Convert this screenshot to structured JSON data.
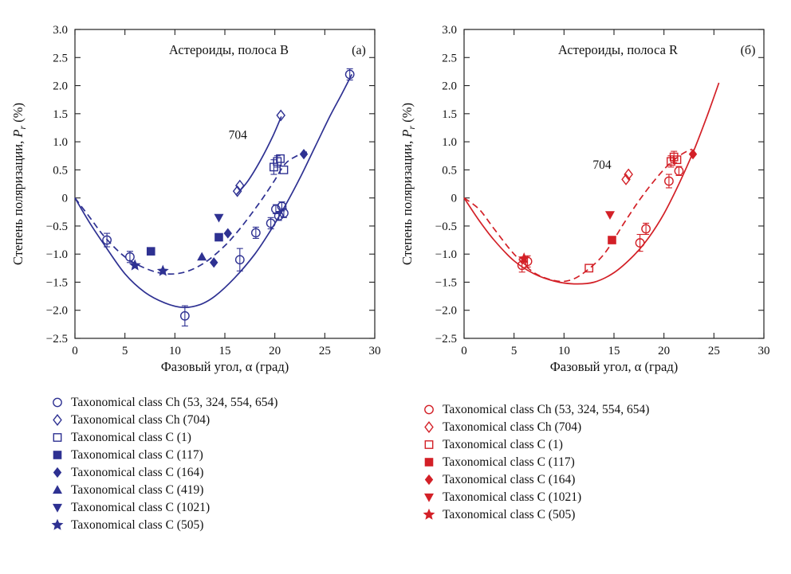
{
  "page": {
    "background": "#ffffff"
  },
  "chart_data": [
    {
      "type": "scatter",
      "band": "B",
      "panel_label": "(а)",
      "title": "Астероиды, полоса B",
      "xlabel": "Фазовый угол, α (град)",
      "ylabel_parts": {
        "prefix": "Степень поляризации, ",
        "symbol": "P",
        "sub": "r",
        "suffix": " (%)"
      },
      "color": "#2e3192",
      "xlim": [
        0,
        30
      ],
      "ylim": [
        -2.5,
        3.0
      ],
      "xticks": [
        0,
        5,
        10,
        15,
        20,
        25,
        30
      ],
      "xtick_labels": [
        "0",
        "5",
        "10",
        "15",
        "20",
        "25",
        "30"
      ],
      "yticks": [
        3.0,
        2.5,
        2.0,
        1.5,
        1.0,
        0.5,
        0,
        -0.5,
        -1.0,
        -1.5,
        -2.0,
        -2.5
      ],
      "ytick_labels": [
        "3.0",
        "2.5",
        "2.0",
        "1.5",
        "1.0",
        "0.5",
        "0",
        "−0.5",
        "−1.0",
        "−1.5",
        "−2.0",
        "−2.5"
      ],
      "annotation": {
        "text": "704",
        "x": 16.3,
        "y": 1.05
      },
      "curves": [
        {
          "style": "solid",
          "points": [
            [
              0,
              0
            ],
            [
              1.5,
              -0.45
            ],
            [
              3,
              -0.85
            ],
            [
              5,
              -1.35
            ],
            [
              7,
              -1.68
            ],
            [
              9,
              -1.87
            ],
            [
              10.8,
              -1.95
            ],
            [
              12.5,
              -1.9
            ],
            [
              14,
              -1.75
            ],
            [
              16,
              -1.42
            ],
            [
              18,
              -1.0
            ],
            [
              19.5,
              -0.6
            ],
            [
              21,
              -0.15
            ],
            [
              22.5,
              0.35
            ],
            [
              24,
              0.9
            ],
            [
              25.5,
              1.45
            ],
            [
              26.7,
              1.85
            ],
            [
              27.7,
              2.2
            ]
          ]
        },
        {
          "style": "dashed",
          "points": [
            [
              0,
              0
            ],
            [
              1.5,
              -0.35
            ],
            [
              3,
              -0.7
            ],
            [
              5,
              -1.05
            ],
            [
              7,
              -1.25
            ],
            [
              9,
              -1.35
            ],
            [
              11,
              -1.32
            ],
            [
              13,
              -1.15
            ],
            [
              15,
              -0.85
            ],
            [
              16.5,
              -0.55
            ],
            [
              18,
              -0.2
            ],
            [
              19,
              0.05
            ],
            [
              20,
              0.32
            ],
            [
              21,
              0.6
            ],
            [
              22,
              0.73
            ],
            [
              23.2,
              0.82
            ]
          ]
        },
        {
          "style": "solid",
          "points": [
            [
              16.1,
              0.05
            ],
            [
              17.3,
              0.3
            ],
            [
              18.6,
              0.68
            ],
            [
              19.8,
              1.1
            ],
            [
              20.65,
              1.45
            ]
          ]
        }
      ],
      "series": [
        {
          "name": "Taxonomical class Ch (53, 324, 554, 654)",
          "symbol": "circle-open",
          "points": [
            {
              "x": 3.2,
              "y": -0.75,
              "err": 0.12
            },
            {
              "x": 5.5,
              "y": -1.05,
              "err": 0.1
            },
            {
              "x": 11.0,
              "y": -2.1,
              "err": 0.18
            },
            {
              "x": 16.5,
              "y": -1.1,
              "err": 0.2
            },
            {
              "x": 18.1,
              "y": -0.62,
              "err": 0.1
            },
            {
              "x": 19.6,
              "y": -0.45,
              "err": 0.1
            },
            {
              "x": 20.1,
              "y": -0.2,
              "err": 0.08
            },
            {
              "x": 20.4,
              "y": -0.32,
              "err": 0.08
            },
            {
              "x": 20.7,
              "y": -0.15,
              "err": 0.08
            },
            {
              "x": 20.9,
              "y": -0.27,
              "err": 0.08
            },
            {
              "x": 27.5,
              "y": 2.2,
              "err": 0.1
            }
          ]
        },
        {
          "name": "Taxonomical class Ch (704)",
          "symbol": "diamond-open",
          "points": [
            {
              "x": 16.25,
              "y": 0.12
            },
            {
              "x": 16.5,
              "y": 0.22
            },
            {
              "x": 20.6,
              "y": 1.47
            }
          ]
        },
        {
          "name": "Taxonomical class C (1)",
          "symbol": "square-open",
          "points": [
            {
              "x": 19.9,
              "y": 0.55,
              "err": 0.13
            },
            {
              "x": 20.25,
              "y": 0.65,
              "err": 0.1
            },
            {
              "x": 20.55,
              "y": 0.7
            },
            {
              "x": 20.9,
              "y": 0.5
            }
          ]
        },
        {
          "name": "Taxonomical class C (117)",
          "symbol": "square-filled",
          "points": [
            {
              "x": 7.6,
              "y": -0.95
            },
            {
              "x": 14.4,
              "y": -0.7
            }
          ]
        },
        {
          "name": "Taxonomical class C (164)",
          "symbol": "diamond-filled",
          "points": [
            {
              "x": 13.9,
              "y": -1.15
            },
            {
              "x": 15.3,
              "y": -0.63
            },
            {
              "x": 22.9,
              "y": 0.78
            }
          ]
        },
        {
          "name": "Taxonomical class C (419)",
          "symbol": "triangle-up-filled",
          "points": [
            {
              "x": 12.7,
              "y": -1.05
            }
          ]
        },
        {
          "name": "Taxonomical class C (1021)",
          "symbol": "triangle-down-filled",
          "points": [
            {
              "x": 14.4,
              "y": -0.35
            }
          ]
        },
        {
          "name": "Taxonomical class C (505)",
          "symbol": "star-filled",
          "points": [
            {
              "x": 6.0,
              "y": -1.2
            },
            {
              "x": 8.8,
              "y": -1.3
            }
          ]
        }
      ]
    },
    {
      "type": "scatter",
      "band": "R",
      "panel_label": "(б)",
      "title": "Астероиды, полоса R",
      "xlabel": "Фазовый угол, α (град)",
      "ylabel_parts": {
        "prefix": "Степень поляризации, ",
        "symbol": "P",
        "sub": "r",
        "suffix": " (%)"
      },
      "color": "#d32027",
      "xlim": [
        0,
        30
      ],
      "ylim": [
        -2.5,
        3.0
      ],
      "xticks": [
        0,
        5,
        10,
        15,
        20,
        25,
        30
      ],
      "xtick_labels": [
        "0",
        "5",
        "10",
        "15",
        "20",
        "25",
        "30"
      ],
      "yticks": [
        3.0,
        2.5,
        2.0,
        1.5,
        1.0,
        0.5,
        0,
        -0.5,
        -1.0,
        -1.5,
        -2.0,
        -2.5
      ],
      "ytick_labels": [
        "3.0",
        "2.5",
        "2.0",
        "1.5",
        "1.0",
        "0.5",
        "0",
        "−0.5",
        "−1.0",
        "−1.5",
        "−2.0",
        "−2.5"
      ],
      "annotation": {
        "text": "704",
        "x": 13.8,
        "y": 0.52
      },
      "curves": [
        {
          "style": "solid",
          "points": [
            [
              0,
              0
            ],
            [
              1.5,
              -0.4
            ],
            [
              3,
              -0.75
            ],
            [
              5,
              -1.12
            ],
            [
              7,
              -1.35
            ],
            [
              9,
              -1.48
            ],
            [
              11,
              -1.53
            ],
            [
              13,
              -1.5
            ],
            [
              15,
              -1.33
            ],
            [
              17,
              -1.02
            ],
            [
              18.5,
              -0.7
            ],
            [
              20,
              -0.28
            ],
            [
              21.5,
              0.25
            ],
            [
              23,
              0.85
            ],
            [
              24.3,
              1.45
            ],
            [
              25.5,
              2.05
            ]
          ]
        },
        {
          "style": "dashed",
          "points": [
            [
              0,
              0
            ],
            [
              1.5,
              -0.2
            ],
            [
              3,
              -0.55
            ],
            [
              5,
              -1.0
            ],
            [
              7,
              -1.33
            ],
            [
              9,
              -1.47
            ],
            [
              10.5,
              -1.47
            ],
            [
              12,
              -1.33
            ],
            [
              14,
              -1.0
            ],
            [
              16,
              -0.45
            ],
            [
              17.5,
              -0.05
            ],
            [
              19,
              0.3
            ],
            [
              20.5,
              0.6
            ],
            [
              21.8,
              0.78
            ],
            [
              22.8,
              0.87
            ]
          ]
        }
      ],
      "series": [
        {
          "name": "Taxonomical class Ch (53, 324, 554, 654)",
          "symbol": "circle-open",
          "points": [
            {
              "x": 5.8,
              "y": -1.2,
              "err": 0.12
            },
            {
              "x": 6.35,
              "y": -1.13,
              "err": 0.1
            },
            {
              "x": 17.6,
              "y": -0.8,
              "err": 0.15
            },
            {
              "x": 18.2,
              "y": -0.55,
              "err": 0.1
            },
            {
              "x": 20.5,
              "y": 0.3,
              "err": 0.12
            },
            {
              "x": 21.5,
              "y": 0.48,
              "err": 0.08
            }
          ]
        },
        {
          "name": "Taxonomical class Ch (704)",
          "symbol": "diamond-open",
          "points": [
            {
              "x": 16.2,
              "y": 0.33
            },
            {
              "x": 16.45,
              "y": 0.42
            }
          ]
        },
        {
          "name": "Taxonomical class C (1)",
          "symbol": "square-open",
          "points": [
            {
              "x": 12.5,
              "y": -1.25
            },
            {
              "x": 20.7,
              "y": 0.65,
              "err": 0.1
            },
            {
              "x": 21.0,
              "y": 0.73,
              "err": 0.1
            },
            {
              "x": 21.3,
              "y": 0.68
            }
          ]
        },
        {
          "name": "Taxonomical class C (117)",
          "symbol": "square-filled",
          "points": [
            {
              "x": 14.8,
              "y": -0.75
            }
          ]
        },
        {
          "name": "Taxonomical class C (164)",
          "symbol": "diamond-filled",
          "points": [
            {
              "x": 22.9,
              "y": 0.78
            }
          ]
        },
        {
          "name": "Taxonomical class C (1021)",
          "symbol": "triangle-down-filled",
          "points": [
            {
              "x": 14.6,
              "y": -0.3
            }
          ]
        },
        {
          "name": "Taxonomical class C (505)",
          "symbol": "star-filled",
          "points": [
            {
              "x": 6.0,
              "y": -1.08
            }
          ]
        }
      ]
    }
  ]
}
